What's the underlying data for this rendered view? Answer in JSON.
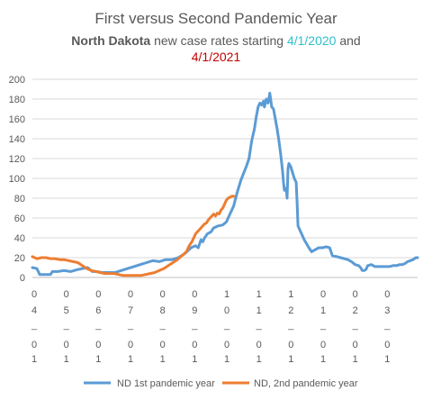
{
  "chart_data": {
    "type": "line",
    "title": {
      "line1": "First versus Second Pandemic Year",
      "line2_bold": "North Dakota",
      "line2_rest": " new case rates starting ",
      "date1": "4/1/2020",
      "line2_and": " and",
      "date2": "4/1/2021"
    },
    "ylim": [
      0,
      200
    ],
    "yticks": [
      0,
      20,
      40,
      60,
      80,
      100,
      120,
      140,
      160,
      180,
      200
    ],
    "grid": true,
    "legend_position": "bottom",
    "x_ticks": [
      {
        "month": [
          "0",
          "4"
        ],
        "day": [
          "0",
          "1"
        ]
      },
      {
        "month": [
          "0",
          "5"
        ],
        "day": [
          "0",
          "1"
        ]
      },
      {
        "month": [
          "0",
          "6"
        ],
        "day": [
          "0",
          "1"
        ]
      },
      {
        "month": [
          "0",
          "7"
        ],
        "day": [
          "0",
          "1"
        ]
      },
      {
        "month": [
          "0",
          "8"
        ],
        "day": [
          "0",
          "1"
        ]
      },
      {
        "month": [
          "0",
          "9"
        ],
        "day": [
          "0",
          "1"
        ]
      },
      {
        "month": [
          "1",
          "0"
        ],
        "day": [
          "0",
          "1"
        ]
      },
      {
        "month": [
          "1",
          "1"
        ],
        "day": [
          "0",
          "1"
        ]
      },
      {
        "month": [
          "1",
          "2"
        ],
        "day": [
          "0",
          "1"
        ]
      },
      {
        "month": [
          "0",
          "1"
        ],
        "day": [
          "0",
          "1"
        ]
      },
      {
        "month": [
          "0",
          "2"
        ],
        "day": [
          "0",
          "1"
        ]
      },
      {
        "month": [
          "0",
          "3"
        ],
        "day": [
          "0",
          "1"
        ]
      }
    ],
    "tick_dash": "_",
    "series": [
      {
        "name": "ND 1st pandemic year",
        "color": "#5b9bd5",
        "points": [
          [
            0,
            10
          ],
          [
            5,
            9
          ],
          [
            8,
            3
          ],
          [
            14,
            3
          ],
          [
            20,
            3
          ],
          [
            22,
            6
          ],
          [
            28,
            6
          ],
          [
            35,
            7
          ],
          [
            42,
            6
          ],
          [
            50,
            8
          ],
          [
            55,
            9
          ],
          [
            61,
            10
          ],
          [
            66,
            6
          ],
          [
            70,
            6
          ],
          [
            77,
            5
          ],
          [
            84,
            5
          ],
          [
            91,
            5
          ],
          [
            98,
            7
          ],
          [
            105,
            9
          ],
          [
            112,
            11
          ],
          [
            119,
            13
          ],
          [
            126,
            15
          ],
          [
            133,
            17
          ],
          [
            140,
            16
          ],
          [
            147,
            18
          ],
          [
            154,
            18
          ],
          [
            161,
            20
          ],
          [
            168,
            24
          ],
          [
            175,
            30
          ],
          [
            180,
            32
          ],
          [
            183,
            30
          ],
          [
            186,
            38
          ],
          [
            188,
            36
          ],
          [
            190,
            40
          ],
          [
            193,
            44
          ],
          [
            197,
            46
          ],
          [
            200,
            50
          ],
          [
            205,
            52
          ],
          [
            210,
            53
          ],
          [
            214,
            56
          ],
          [
            218,
            64
          ],
          [
            222,
            72
          ],
          [
            226,
            86
          ],
          [
            230,
            98
          ],
          [
            233,
            105
          ],
          [
            236,
            112
          ],
          [
            239,
            120
          ],
          [
            242,
            138
          ],
          [
            245,
            150
          ],
          [
            247,
            162
          ],
          [
            249,
            172
          ],
          [
            251,
            176
          ],
          [
            253,
            174
          ],
          [
            255,
            178
          ],
          [
            256,
            172
          ],
          [
            258,
            180
          ],
          [
            260,
            176
          ],
          [
            262,
            186
          ],
          [
            264,
            172
          ],
          [
            266,
            170
          ],
          [
            268,
            160
          ],
          [
            270,
            150
          ],
          [
            272,
            138
          ],
          [
            274,
            124
          ],
          [
            276,
            108
          ],
          [
            277,
            96
          ],
          [
            278,
            88
          ],
          [
            280,
            90
          ],
          [
            281,
            80
          ],
          [
            282,
            110
          ],
          [
            283,
            115
          ],
          [
            285,
            112
          ],
          [
            287,
            106
          ],
          [
            289,
            100
          ],
          [
            291,
            96
          ],
          [
            292,
            76
          ],
          [
            293,
            52
          ],
          [
            296,
            46
          ],
          [
            300,
            38
          ],
          [
            305,
            30
          ],
          [
            308,
            26
          ],
          [
            312,
            28
          ],
          [
            316,
            30
          ],
          [
            320,
            30
          ],
          [
            324,
            31
          ],
          [
            328,
            30
          ],
          [
            331,
            22
          ],
          [
            336,
            21
          ],
          [
            340,
            20
          ],
          [
            344,
            19
          ],
          [
            348,
            18
          ],
          [
            352,
            16
          ],
          [
            356,
            13
          ],
          [
            360,
            12
          ],
          [
            362,
            10
          ],
          [
            364,
            7
          ],
          [
            366,
            7
          ],
          [
            368,
            8
          ],
          [
            370,
            12
          ],
          [
            374,
            13
          ],
          [
            378,
            11
          ],
          [
            382,
            11
          ],
          [
            386,
            11
          ],
          [
            390,
            11
          ],
          [
            394,
            11
          ],
          [
            398,
            12
          ],
          [
            402,
            12
          ],
          [
            405,
            13
          ],
          [
            408,
            13
          ],
          [
            411,
            14
          ],
          [
            414,
            16
          ],
          [
            417,
            17
          ],
          [
            420,
            18
          ],
          [
            423,
            20
          ],
          [
            425,
            20
          ]
        ]
      },
      {
        "name": "ND, 2nd pandemic year",
        "color": "#ed7d31",
        "points": [
          [
            0,
            21
          ],
          [
            5,
            19
          ],
          [
            10,
            20
          ],
          [
            15,
            20
          ],
          [
            20,
            19
          ],
          [
            25,
            19
          ],
          [
            30,
            18
          ],
          [
            35,
            18
          ],
          [
            40,
            17
          ],
          [
            45,
            16
          ],
          [
            50,
            15
          ],
          [
            55,
            12
          ],
          [
            60,
            9
          ],
          [
            65,
            7
          ],
          [
            70,
            6
          ],
          [
            75,
            5
          ],
          [
            80,
            4
          ],
          [
            85,
            4
          ],
          [
            90,
            4
          ],
          [
            95,
            3
          ],
          [
            100,
            2
          ],
          [
            105,
            2
          ],
          [
            110,
            2
          ],
          [
            115,
            2
          ],
          [
            120,
            2
          ],
          [
            125,
            3
          ],
          [
            130,
            4
          ],
          [
            135,
            5
          ],
          [
            140,
            7
          ],
          [
            145,
            9
          ],
          [
            150,
            12
          ],
          [
            155,
            15
          ],
          [
            160,
            18
          ],
          [
            165,
            22
          ],
          [
            170,
            26
          ],
          [
            173,
            32
          ],
          [
            176,
            36
          ],
          [
            178,
            40
          ],
          [
            180,
            44
          ],
          [
            182,
            46
          ],
          [
            184,
            48
          ],
          [
            186,
            50
          ],
          [
            188,
            52
          ],
          [
            190,
            54
          ],
          [
            192,
            55
          ],
          [
            194,
            58
          ],
          [
            196,
            60
          ],
          [
            198,
            62
          ],
          [
            200,
            64
          ],
          [
            202,
            62
          ],
          [
            204,
            65
          ],
          [
            206,
            64
          ],
          [
            208,
            68
          ],
          [
            210,
            70
          ],
          [
            212,
            74
          ],
          [
            214,
            78
          ],
          [
            216,
            80
          ],
          [
            218,
            81
          ],
          [
            220,
            82
          ],
          [
            222,
            82
          ]
        ]
      }
    ],
    "x_range": [
      0,
      425
    ]
  }
}
